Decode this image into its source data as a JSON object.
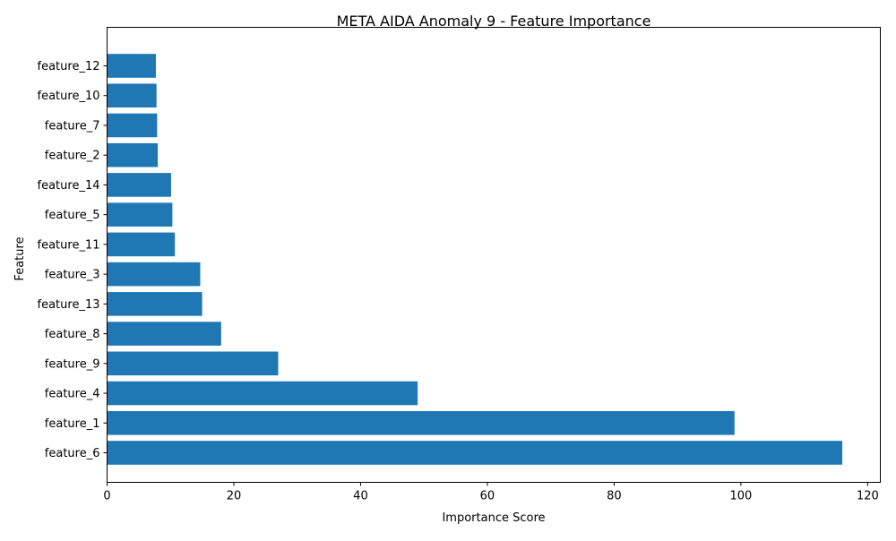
{
  "chart_data": {
    "type": "bar",
    "orientation": "horizontal",
    "title": "META AIDA Anomaly 9 - Feature Importance",
    "xlabel": "Importance Score",
    "ylabel": "Feature",
    "xlim": [
      0,
      122
    ],
    "x_ticks": [
      0,
      20,
      40,
      60,
      80,
      100,
      120
    ],
    "grid": false,
    "bar_color": "#1f77b4",
    "categories": [
      "feature_6",
      "feature_1",
      "feature_4",
      "feature_9",
      "feature_8",
      "feature_13",
      "feature_3",
      "feature_11",
      "feature_5",
      "feature_14",
      "feature_2",
      "feature_7",
      "feature_10",
      "feature_12"
    ],
    "values": [
      116,
      99,
      49,
      27,
      18,
      15,
      14.7,
      10.7,
      10.3,
      10.1,
      8,
      7.9,
      7.8,
      7.7
    ]
  }
}
